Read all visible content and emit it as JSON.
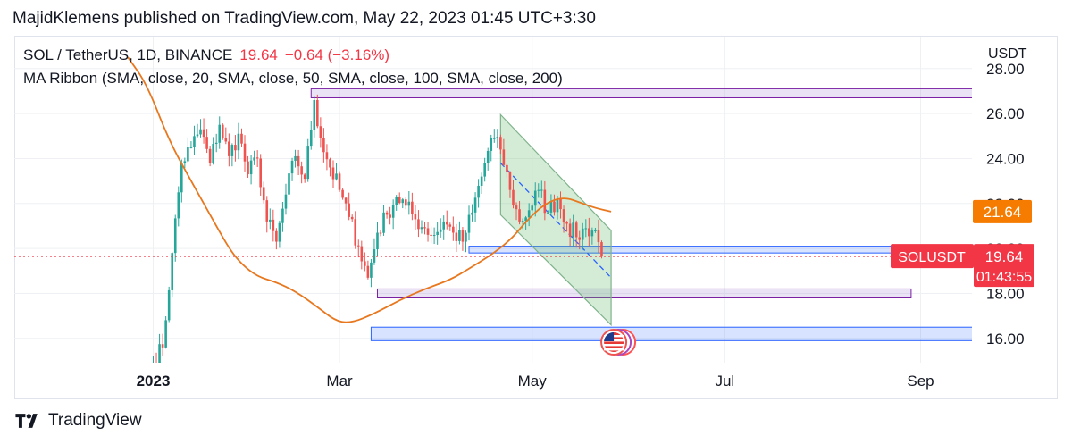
{
  "header": {
    "publisher_line": "MajidKlemens published on TradingView.com, May 22, 2023 01:45 UTC+3:30"
  },
  "legend": {
    "symbol": "SOL / TetherUS, 1D, BINANCE",
    "last": "19.64",
    "change": "−0.64 (−3.16%)",
    "indicator": "MA Ribbon (SMA, close, 20, SMA, close, 50, SMA, close, 100, SMA, close, 200)"
  },
  "currency": "USDT",
  "footer": {
    "brand": "TradingView"
  },
  "colors": {
    "up": "#26a69a",
    "down": "#ef5350",
    "ma": "#e8781f",
    "channel": "#7fb38c",
    "price_line": "#f23645",
    "zone_blue": "#2962ff",
    "zone_purple": "#7b1fa2",
    "grid": "#eef0f3"
  },
  "chart_data": {
    "type": "candlestick",
    "x_axis": {
      "ticks": [
        "2023",
        "Mar",
        "May",
        "Jul",
        "Sep"
      ],
      "tick_days": [
        0,
        59,
        120,
        181,
        243
      ]
    },
    "y_axis": {
      "ticks": [
        "16.00",
        "18.00",
        "20.00",
        "22.00",
        "24.00",
        "26.00",
        "28.00"
      ],
      "tick_values": [
        16,
        18,
        20,
        22,
        24,
        26,
        28
      ],
      "range": [
        14.9,
        28.8
      ]
    },
    "series": {
      "anchors": [
        [
          0,
          14.9
        ],
        [
          3,
          15.6
        ],
        [
          6,
          19.8
        ],
        [
          9,
          23.8
        ],
        [
          12,
          24.5
        ],
        [
          15,
          25.3
        ],
        [
          18,
          23.8
        ],
        [
          21,
          25.5
        ],
        [
          24,
          24.1
        ],
        [
          27,
          25.1
        ],
        [
          30,
          23.3
        ],
        [
          33,
          24.0
        ],
        [
          36,
          21.2
        ],
        [
          39,
          20.3
        ],
        [
          42,
          22.4
        ],
        [
          45,
          24.1
        ],
        [
          48,
          23.1
        ],
        [
          51,
          26.6
        ],
        [
          53,
          24.9
        ],
        [
          56,
          23.6
        ],
        [
          59,
          22.6
        ],
        [
          62,
          21.4
        ],
        [
          65,
          20.1
        ],
        [
          68,
          18.7
        ],
        [
          71,
          20.7
        ],
        [
          74,
          21.5
        ],
        [
          77,
          22.3
        ],
        [
          80,
          21.9
        ],
        [
          83,
          21.3
        ],
        [
          86,
          20.9
        ],
        [
          89,
          20.6
        ],
        [
          92,
          21.2
        ],
        [
          95,
          20.7
        ],
        [
          98,
          20.3
        ],
        [
          101,
          21.6
        ],
        [
          104,
          23.2
        ],
        [
          107,
          24.9
        ],
        [
          110,
          24.4
        ],
        [
          113,
          22.6
        ],
        [
          116,
          21.2
        ],
        [
          119,
          21.7
        ],
        [
          122,
          22.6
        ],
        [
          125,
          21.6
        ],
        [
          128,
          22.2
        ],
        [
          131,
          21.1
        ],
        [
          134,
          20.5
        ],
        [
          137,
          20.9
        ],
        [
          140,
          20.8
        ],
        [
          141,
          20.28
        ],
        [
          142,
          19.64
        ]
      ],
      "last_candle": {
        "open": 20.28,
        "close": 19.64
      }
    },
    "moving_average": {
      "name": "MA",
      "points": [
        [
          -8,
          28.5
        ],
        [
          -2,
          27.3
        ],
        [
          5,
          24.8
        ],
        [
          12,
          23.0
        ],
        [
          18,
          21.5
        ],
        [
          24,
          20.0
        ],
        [
          28,
          19.3
        ],
        [
          33,
          18.75
        ],
        [
          39,
          18.5
        ],
        [
          45,
          18.1
        ],
        [
          52,
          17.4
        ],
        [
          58,
          16.75
        ],
        [
          63,
          16.7
        ],
        [
          70,
          17.1
        ],
        [
          78,
          17.7
        ],
        [
          86,
          18.2
        ],
        [
          94,
          18.6
        ],
        [
          100,
          19.1
        ],
        [
          108,
          19.8
        ],
        [
          114,
          20.5
        ],
        [
          118,
          21.2
        ],
        [
          124,
          22.0
        ],
        [
          130,
          22.3
        ],
        [
          136,
          22.0
        ],
        [
          140,
          21.8
        ],
        [
          145,
          21.64
        ]
      ]
    },
    "channel": {
      "upper": [
        [
          110,
          25.95
        ],
        [
          145,
          20.8
        ]
      ],
      "lower": [
        [
          110,
          21.5
        ],
        [
          145,
          16.6
        ]
      ],
      "midline": [
        [
          110,
          23.8
        ],
        [
          145,
          18.7
        ]
      ]
    },
    "zones": [
      {
        "from": 50,
        "to": 353,
        "low": 26.7,
        "high": 27.1,
        "style": "purple"
      },
      {
        "from": 100,
        "to": 266,
        "low": 19.8,
        "high": 20.1,
        "style": "blue"
      },
      {
        "from": 71,
        "to": 240,
        "low": 17.8,
        "high": 18.2,
        "style": "purple"
      },
      {
        "from": 69,
        "to": 353,
        "low": 15.9,
        "high": 16.5,
        "style": "blue"
      }
    ],
    "price_labels": [
      {
        "text": "21.64",
        "value": 21.64,
        "color": "#f57c00"
      },
      {
        "text": "19.64",
        "value": 19.64,
        "color": "#f23645",
        "countdown": "01:43:55",
        "tag": "SOLUSDT"
      }
    ],
    "events": [
      {
        "day": 145,
        "icon": "us-flag-icon"
      }
    ]
  }
}
